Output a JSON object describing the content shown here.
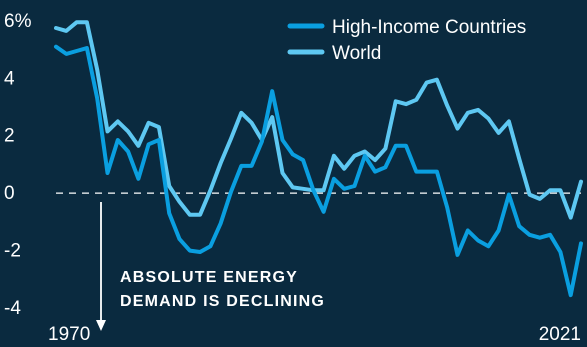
{
  "chart_data": {
    "type": "line",
    "x_tick_labels": [
      "1970",
      "2021"
    ],
    "y_tick_labels": [
      "6%",
      "4",
      "2",
      "0",
      "-2",
      "-4"
    ],
    "y_ticks": [
      6,
      4,
      2,
      0,
      -2,
      -4
    ],
    "ylim": [
      -4,
      6.1
    ],
    "xlim": [
      1970,
      2021
    ],
    "zero_line": "dashed",
    "grid": false,
    "legend_position": "top-right",
    "annotation": {
      "line1": "ABSOLUTE ENERGY",
      "line2": "DEMAND IS DECLINING",
      "arrow": "down"
    },
    "x": [
      1970,
      1971,
      1972,
      1973,
      1974,
      1975,
      1976,
      1977,
      1978,
      1979,
      1980,
      1981,
      1982,
      1983,
      1984,
      1985,
      1986,
      1987,
      1988,
      1989,
      1990,
      1991,
      1992,
      1993,
      1994,
      1995,
      1996,
      1997,
      1998,
      1999,
      2000,
      2001,
      2002,
      2003,
      2004,
      2005,
      2006,
      2007,
      2008,
      2009,
      2010,
      2011,
      2012,
      2013,
      2014,
      2015,
      2016,
      2017,
      2018,
      2019,
      2020,
      2021
    ],
    "series": [
      {
        "name": "High-Income Countries",
        "color": "#0a9fe0",
        "values": [
          5.1,
          4.85,
          4.95,
          5.05,
          3.3,
          0.7,
          1.85,
          1.45,
          0.5,
          1.7,
          1.85,
          -0.7,
          -1.6,
          -2.0,
          -2.05,
          -1.85,
          -1.05,
          0.05,
          0.95,
          0.95,
          1.8,
          3.55,
          1.85,
          1.35,
          1.15,
          0.1,
          -0.65,
          0.5,
          0.15,
          0.25,
          1.3,
          0.75,
          0.9,
          1.65,
          1.65,
          0.75,
          0.75,
          0.75,
          -0.5,
          -2.15,
          -1.3,
          -1.65,
          -1.85,
          -1.3,
          -0.05,
          -1.15,
          -1.45,
          -1.55,
          -1.45,
          -2.05,
          -3.55,
          -1.75
        ]
      },
      {
        "name": "World",
        "color": "#5ec8f2",
        "values": [
          5.75,
          5.65,
          5.95,
          5.95,
          4.3,
          2.15,
          2.5,
          2.15,
          1.65,
          2.45,
          2.3,
          0.25,
          -0.3,
          -0.75,
          -0.75,
          0.1,
          1.05,
          1.9,
          2.8,
          2.45,
          1.85,
          2.65,
          0.7,
          0.2,
          0.15,
          0.1,
          0.1,
          1.3,
          0.85,
          1.3,
          1.45,
          1.15,
          1.55,
          3.2,
          3.1,
          3.25,
          3.85,
          3.95,
          3.05,
          2.25,
          2.8,
          2.9,
          2.6,
          2.1,
          2.5,
          1.2,
          -0.05,
          -0.2,
          0.1,
          0.1,
          -0.85,
          0.4
        ]
      }
    ]
  }
}
